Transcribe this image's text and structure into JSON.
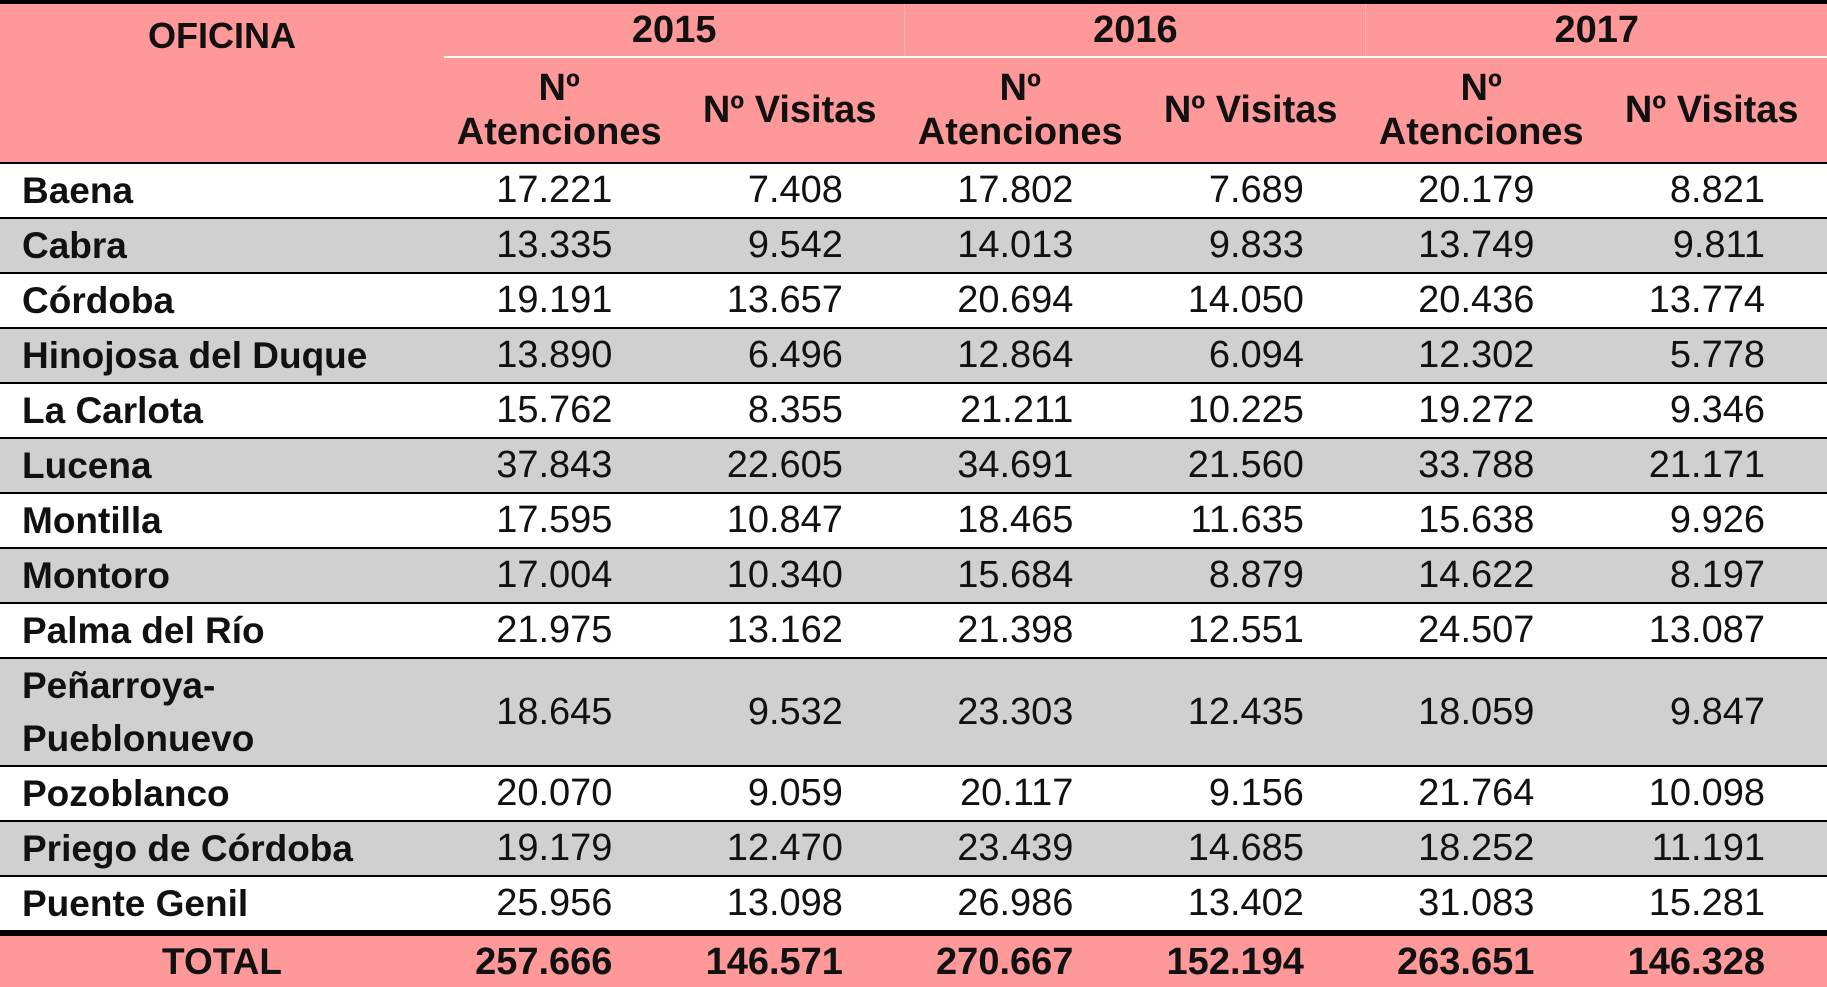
{
  "header": {
    "office_label": "OFICINA",
    "years": [
      "2015",
      "2016",
      "2017"
    ],
    "col_attentions": "Nº Atenciones",
    "col_visits": "Nº Visitas"
  },
  "rows": [
    {
      "office": "Baena",
      "values": [
        "17.221",
        "7.408",
        "17.802",
        "7.689",
        "20.179",
        "8.821"
      ]
    },
    {
      "office": "Cabra",
      "values": [
        "13.335",
        "9.542",
        "14.013",
        "9.833",
        "13.749",
        "9.811"
      ]
    },
    {
      "office": "Córdoba",
      "values": [
        "19.191",
        "13.657",
        "20.694",
        "14.050",
        "20.436",
        "13.774"
      ]
    },
    {
      "office": "Hinojosa del Duque",
      "values": [
        "13.890",
        "6.496",
        "12.864",
        "6.094",
        "12.302",
        "5.778"
      ]
    },
    {
      "office": "La Carlota",
      "values": [
        "15.762",
        "8.355",
        "21.211",
        "10.225",
        "19.272",
        "9.346"
      ]
    },
    {
      "office": "Lucena",
      "values": [
        "37.843",
        "22.605",
        "34.691",
        "21.560",
        "33.788",
        "21.171"
      ]
    },
    {
      "office": "Montilla",
      "values": [
        "17.595",
        "10.847",
        "18.465",
        "11.635",
        "15.638",
        "9.926"
      ]
    },
    {
      "office": "Montoro",
      "values": [
        "17.004",
        "10.340",
        "15.684",
        "8.879",
        "14.622",
        "8.197"
      ]
    },
    {
      "office": "Palma del Río",
      "values": [
        "21.975",
        "13.162",
        "21.398",
        "12.551",
        "24.507",
        "13.087"
      ]
    },
    {
      "office": "Peñarroya-Pueblonuevo",
      "values": [
        "18.645",
        "9.532",
        "23.303",
        "12.435",
        "18.059",
        "9.847"
      ]
    },
    {
      "office": "Pozoblanco",
      "values": [
        "20.070",
        "9.059",
        "20.117",
        "9.156",
        "21.764",
        "10.098"
      ]
    },
    {
      "office": "Priego de Córdoba",
      "values": [
        "19.179",
        "12.470",
        "23.439",
        "14.685",
        "18.252",
        "11.191"
      ]
    },
    {
      "office": "Puente Genil",
      "values": [
        "25.956",
        "13.098",
        "26.986",
        "13.402",
        "31.083",
        "15.281"
      ]
    }
  ],
  "total": {
    "label": "TOTAL",
    "values": [
      "257.666",
      "146.571",
      "270.667",
      "152.194",
      "263.651",
      "146.328"
    ]
  }
}
